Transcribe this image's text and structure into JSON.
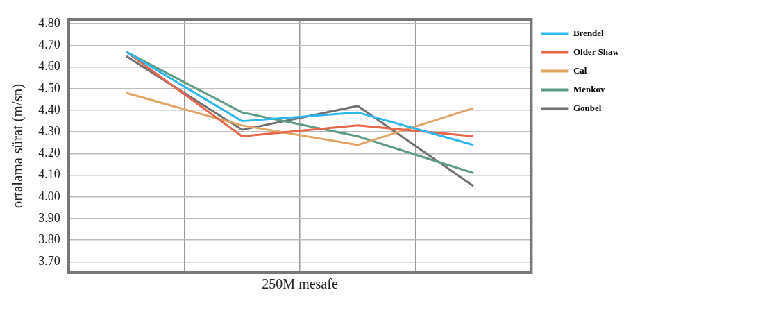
{
  "chart_data": {
    "type": "line",
    "xlabel": "250M mesafe",
    "ylabel": "ortalama sürat (m/sn)",
    "categories": [
      null,
      null,
      null,
      null
    ],
    "series": [
      {
        "name": "Brendel",
        "color": "#2bb8ee",
        "values": [
          4.67,
          4.35,
          4.39,
          4.24
        ]
      },
      {
        "name": "Older Shaw",
        "color": "#e8654a",
        "values": [
          4.67,
          4.28,
          4.33,
          4.28
        ]
      },
      {
        "name": "Cal",
        "color": "#e0a463",
        "values": [
          4.48,
          4.33,
          4.24,
          4.41
        ]
      },
      {
        "name": "Menkov",
        "color": "#5e9b85",
        "values": [
          4.67,
          4.39,
          4.28,
          4.11
        ]
      },
      {
        "name": "Goubel",
        "color": "#707070",
        "values": [
          4.65,
          4.31,
          4.42,
          4.05
        ]
      }
    ],
    "ylim": [
      3.65,
      4.82
    ],
    "yticks": [
      {
        "value": 3.7,
        "label": "3.70"
      },
      {
        "value": 3.8,
        "label": "3.80"
      },
      {
        "value": 3.9,
        "label": "3.90"
      },
      {
        "value": 4.0,
        "label": "4.00"
      },
      {
        "value": 4.1,
        "label": "4.10"
      },
      {
        "value": 4.2,
        "label": "4.20"
      },
      {
        "value": 4.3,
        "label": "4.30"
      },
      {
        "value": 4.4,
        "label": "4.40"
      },
      {
        "value": 4.5,
        "label": "4.50"
      },
      {
        "value": 4.6,
        "label": "4.60"
      },
      {
        "value": 4.7,
        "label": "4.70"
      },
      {
        "value": 4.8,
        "label": "4.80"
      }
    ],
    "grid": true,
    "legend": "right",
    "line_style": "solid",
    "marker": "none"
  }
}
